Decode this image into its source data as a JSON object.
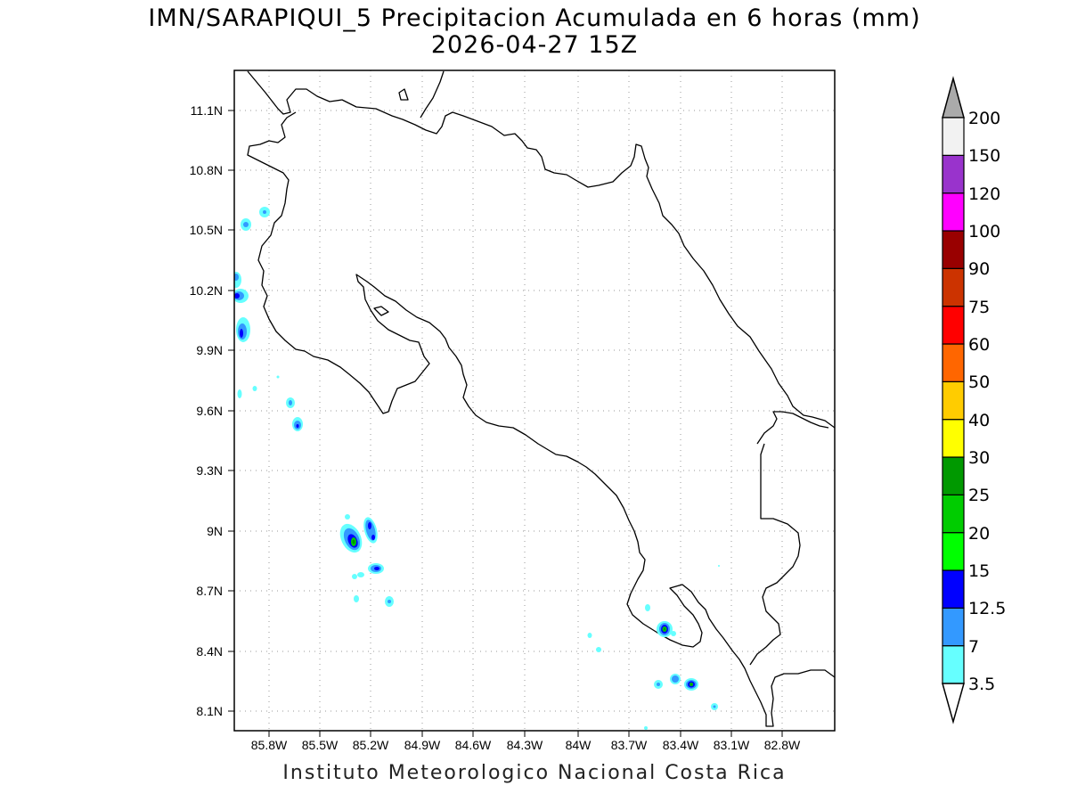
{
  "header": {
    "title": "IMN/SARAPIQUI_5 Precipitacion Acumulada en 6 horas (mm)",
    "subtitle": "2026-04-27 15Z"
  },
  "footer": "Instituto Meteorologico Nacional Costa Rica",
  "axes": {
    "lat_labels": [
      "11.1N",
      "10.8N",
      "10.5N",
      "10.2N",
      "9.9N",
      "9.6N",
      "9.3N",
      "9N",
      "8.7N",
      "8.4N",
      "8.1N"
    ],
    "lon_labels": [
      "85.8W",
      "85.5W",
      "85.2W",
      "84.9W",
      "84.6W",
      "84.3W",
      "84W",
      "83.7W",
      "83.4W",
      "83.1W",
      "82.8W"
    ],
    "grid": true
  },
  "colorbar": {
    "levels": [
      "3.5",
      "7",
      "12.5",
      "15",
      "20",
      "25",
      "30",
      "40",
      "50",
      "60",
      "75",
      "90",
      "100",
      "120",
      "150",
      "200"
    ],
    "colors": [
      "#66ffff",
      "#3399ff",
      "#0000ff",
      "#00ff00",
      "#00cc00",
      "#009900",
      "#ffff00",
      "#ffcc00",
      "#ff6600",
      "#ff0000",
      "#cc3300",
      "#990000",
      "#ff00ff",
      "#9933cc",
      "#f2f2f2"
    ],
    "top_arrow_color": "#aaaaaa",
    "bottom_arrow_color": "#ffffff"
  }
}
